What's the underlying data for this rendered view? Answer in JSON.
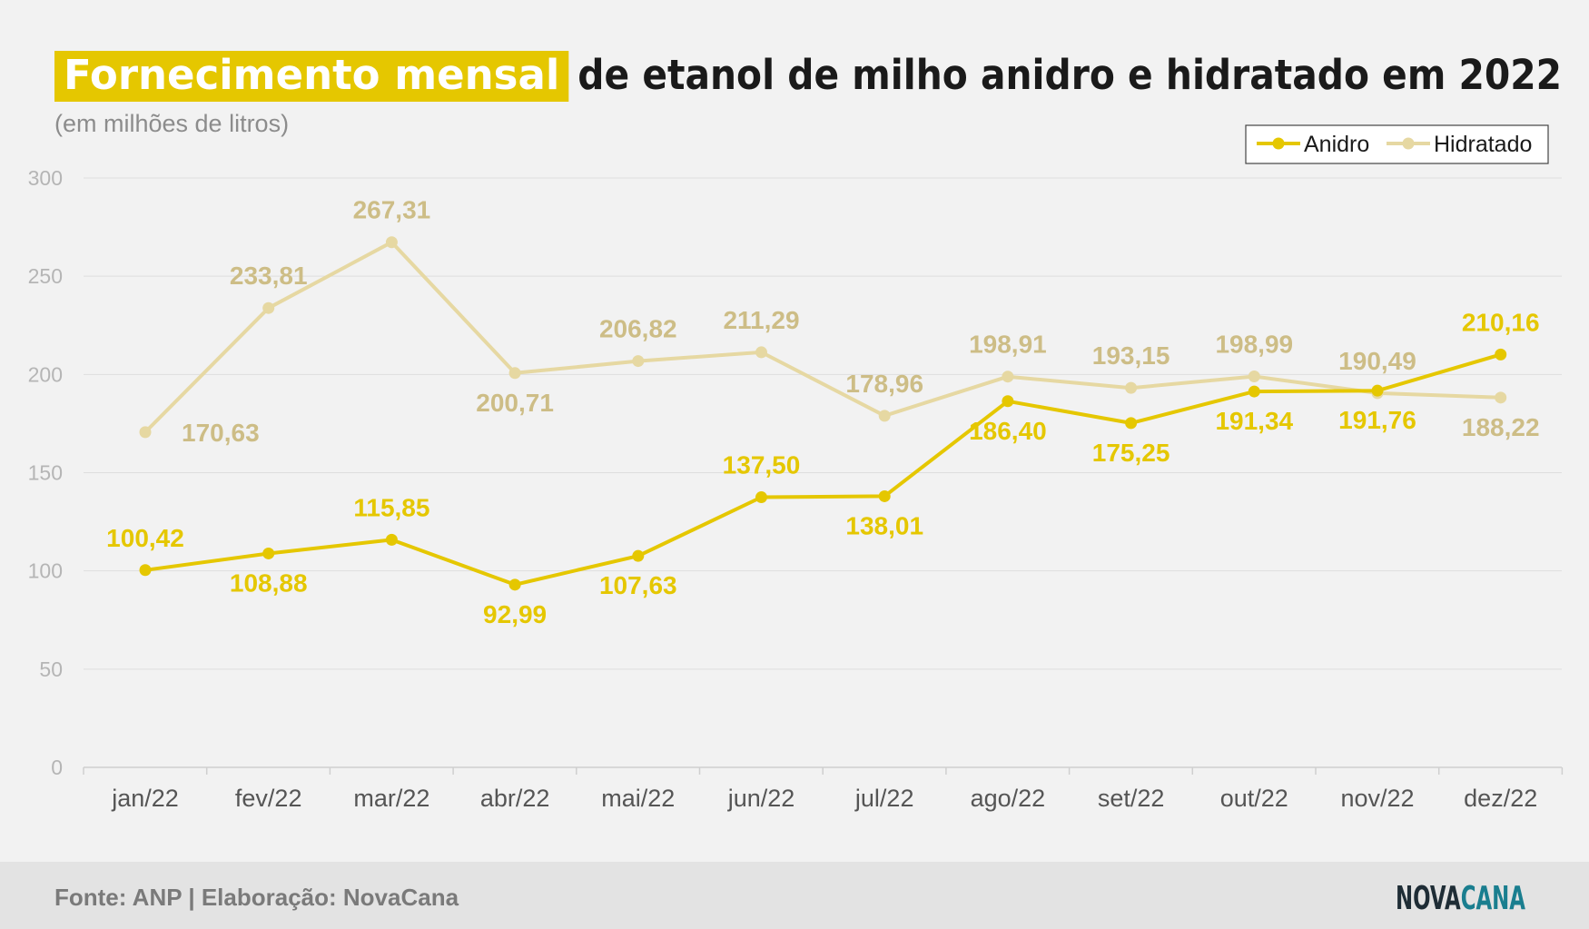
{
  "title_highlight": "Fornecimento mensal",
  "title_rest": "de etanol de milho anidro e hidratado em 2022",
  "subtitle": "(em milhões de litros)",
  "footer": {
    "source": "Fonte: ANP | Elaboração: NovaCana",
    "logo_part1": "NOVA",
    "logo_part2": "CANA"
  },
  "colors": {
    "anidro": "#e5c700",
    "hidratado": "#e6d8a2",
    "hidratado_label": "#cdbd86",
    "highlight": "#e5c700",
    "background": "#f2f2f2",
    "footer_bg": "#e3e3e3",
    "logo_dark": "#1f2d36",
    "logo_accent": "#1a7e8f"
  },
  "chart_data": {
    "type": "line",
    "categories": [
      "jan/22",
      "fev/22",
      "mar/22",
      "abr/22",
      "mai/22",
      "jun/22",
      "jul/22",
      "ago/22",
      "set/22",
      "out/22",
      "nov/22",
      "dez/22"
    ],
    "series": [
      {
        "name": "Anidro",
        "values": [
          100.42,
          108.88,
          115.85,
          92.99,
          107.63,
          137.5,
          138.01,
          186.4,
          175.25,
          191.34,
          191.76,
          210.16
        ],
        "labels": [
          "100,42",
          "108,88",
          "115,85",
          "92,99",
          "107,63",
          "137,50",
          "138,01",
          "186,40",
          "175,25",
          "191,34",
          "191,76",
          "210,16"
        ],
        "label_positions": [
          "above",
          "below",
          "above",
          "below",
          "below",
          "above",
          "below",
          "below",
          "below",
          "below",
          "below",
          "above"
        ]
      },
      {
        "name": "Hidratado",
        "values": [
          170.63,
          233.81,
          267.31,
          200.71,
          206.82,
          211.29,
          178.96,
          198.91,
          193.15,
          198.99,
          190.49,
          188.22
        ],
        "labels": [
          "170,63",
          "233,81",
          "267,31",
          "200,71",
          "206,82",
          "211,29",
          "178,96",
          "198,91",
          "193,15",
          "198,99",
          "190,49",
          "188,22"
        ],
        "label_positions": [
          "below-right",
          "above",
          "above",
          "below",
          "above",
          "above",
          "above",
          "above",
          "above",
          "above",
          "above",
          "below"
        ]
      }
    ],
    "ylim": [
      0,
      300
    ],
    "yticks": [
      0,
      50,
      100,
      150,
      200,
      250,
      300
    ],
    "grid": true,
    "legend": "top-right"
  }
}
